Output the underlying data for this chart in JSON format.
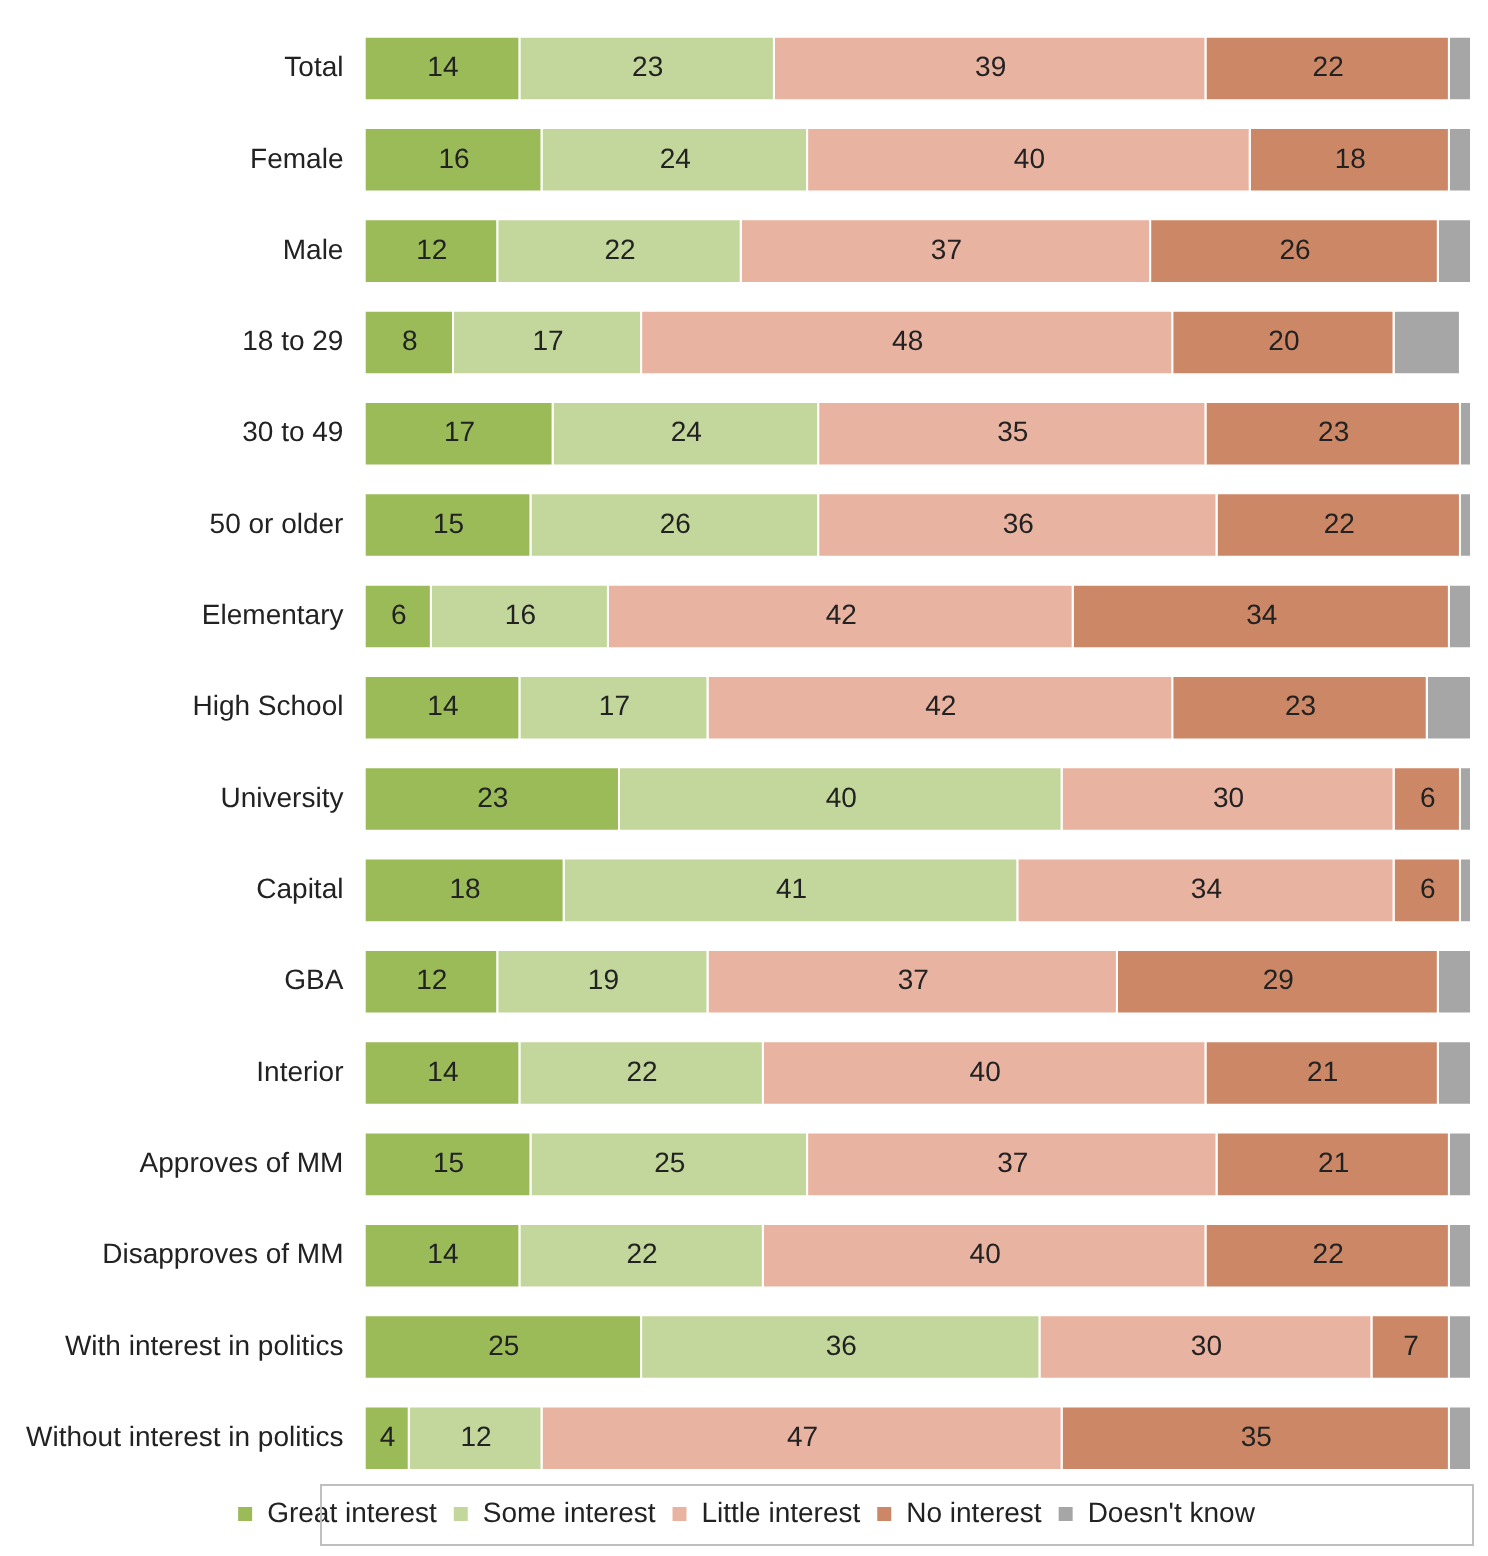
{
  "chart_data": {
    "type": "bar",
    "orientation": "horizontal",
    "stacked": true,
    "categories": [
      "Total",
      "Female",
      "Male",
      "18 to 29",
      "30 to 49",
      "50 or older",
      "Elementary",
      "High School",
      "University",
      "Capital",
      "GBA",
      "Interior",
      "Approves of MM",
      "Disapproves of MM",
      "With interest in politics",
      "Without interest in politics"
    ],
    "series": [
      {
        "name": "Great interest",
        "color": "#9bbb59",
        "values": [
          14,
          16,
          12,
          8,
          17,
          15,
          6,
          14,
          23,
          18,
          12,
          14,
          15,
          14,
          25,
          4
        ],
        "value_labels": [
          "14",
          "16",
          "12",
          "8",
          "17",
          "15",
          "6",
          "14",
          "23",
          "18",
          "12",
          "14",
          "15",
          "14",
          "25",
          "4"
        ]
      },
      {
        "name": "Some interest",
        "color": "#c3d69b",
        "values": [
          23,
          24,
          22,
          17,
          24,
          26,
          16,
          17,
          40,
          41,
          19,
          22,
          25,
          22,
          36,
          12
        ],
        "value_labels": [
          "23",
          "24",
          "22",
          "17",
          "24",
          "26",
          "16",
          "17",
          "40",
          "41",
          "19",
          "22",
          "25",
          "22",
          "36",
          "12"
        ]
      },
      {
        "name": "Little interest",
        "color": "#e8b3a0",
        "values": [
          39,
          40,
          37,
          48,
          35,
          36,
          42,
          42,
          30,
          34,
          37,
          40,
          37,
          40,
          30,
          47
        ],
        "value_labels": [
          "39",
          "40",
          "37",
          "48",
          "35",
          "36",
          "42",
          "42",
          "30",
          "34",
          "37",
          "40",
          "37",
          "40",
          "30",
          "47"
        ]
      },
      {
        "name": "No interest",
        "color": "#cc8866",
        "values": [
          22,
          18,
          26,
          20,
          23,
          22,
          34,
          23,
          6,
          6,
          29,
          21,
          21,
          22,
          7,
          35
        ],
        "value_labels": [
          "22",
          "18",
          "26",
          "20",
          "23",
          "22",
          "34",
          "23",
          "6",
          "6",
          "29",
          "21",
          "21",
          "22",
          "7",
          "35"
        ]
      },
      {
        "name": "Doesn't know",
        "color": "#a6a6a6",
        "values": [
          2,
          2,
          3,
          6,
          1,
          1,
          2,
          4,
          1,
          1,
          3,
          3,
          2,
          2,
          2,
          2
        ]
      }
    ],
    "xlim": [
      0,
      100
    ],
    "tick_labels": "y",
    "grid": false,
    "legend": "bottom"
  }
}
